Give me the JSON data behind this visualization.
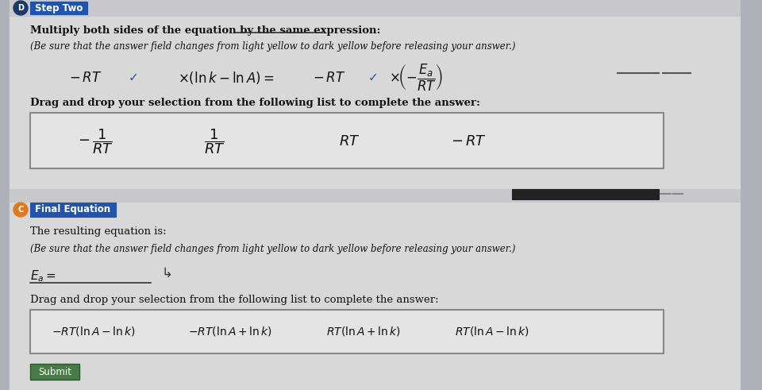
{
  "bg_color": "#b0b0b8",
  "main_bg": "#e0e0e0",
  "section_bg": "#d8d8dc",
  "header_bar_color": "#c8c8cc",
  "step_two_circle_color": "#1a3a6a",
  "step_two_box_color": "#2255aa",
  "step_c_circle_color": "#e07820",
  "step_c_box_color": "#2255aa",
  "white_box": "#f0f0f0",
  "text_dark": "#111111",
  "text_mid": "#333333",
  "drag_underline": "#555555",
  "box_border": "#888888",
  "redacted_color": "#222222",
  "submit_green": "#4a7a4a",
  "dash_line_color": "#555555",
  "check_color": "#2255aa",
  "multiply_text": "Multiply both sides of the equation by the same expression:",
  "same_expression_underline": true,
  "italic_note1": "(Be sure that the answer field changes from light yellow to dark yellow before releasing your answer.)",
  "italic_note2": "(Be sure that the answer field changes from light yellow to dark yellow before releasing your answer.)",
  "resulting_text": "The resulting equation is:",
  "drag_text1": "Drag and drop your selection from the following list to complete the answer:",
  "drag_text2": "Drag and drop your selection from the following list to complete the answer:",
  "step_two_label": "Step Two",
  "step_c_label": "Final Equation",
  "ea_label": "E_a =",
  "submit_text": "Submit"
}
